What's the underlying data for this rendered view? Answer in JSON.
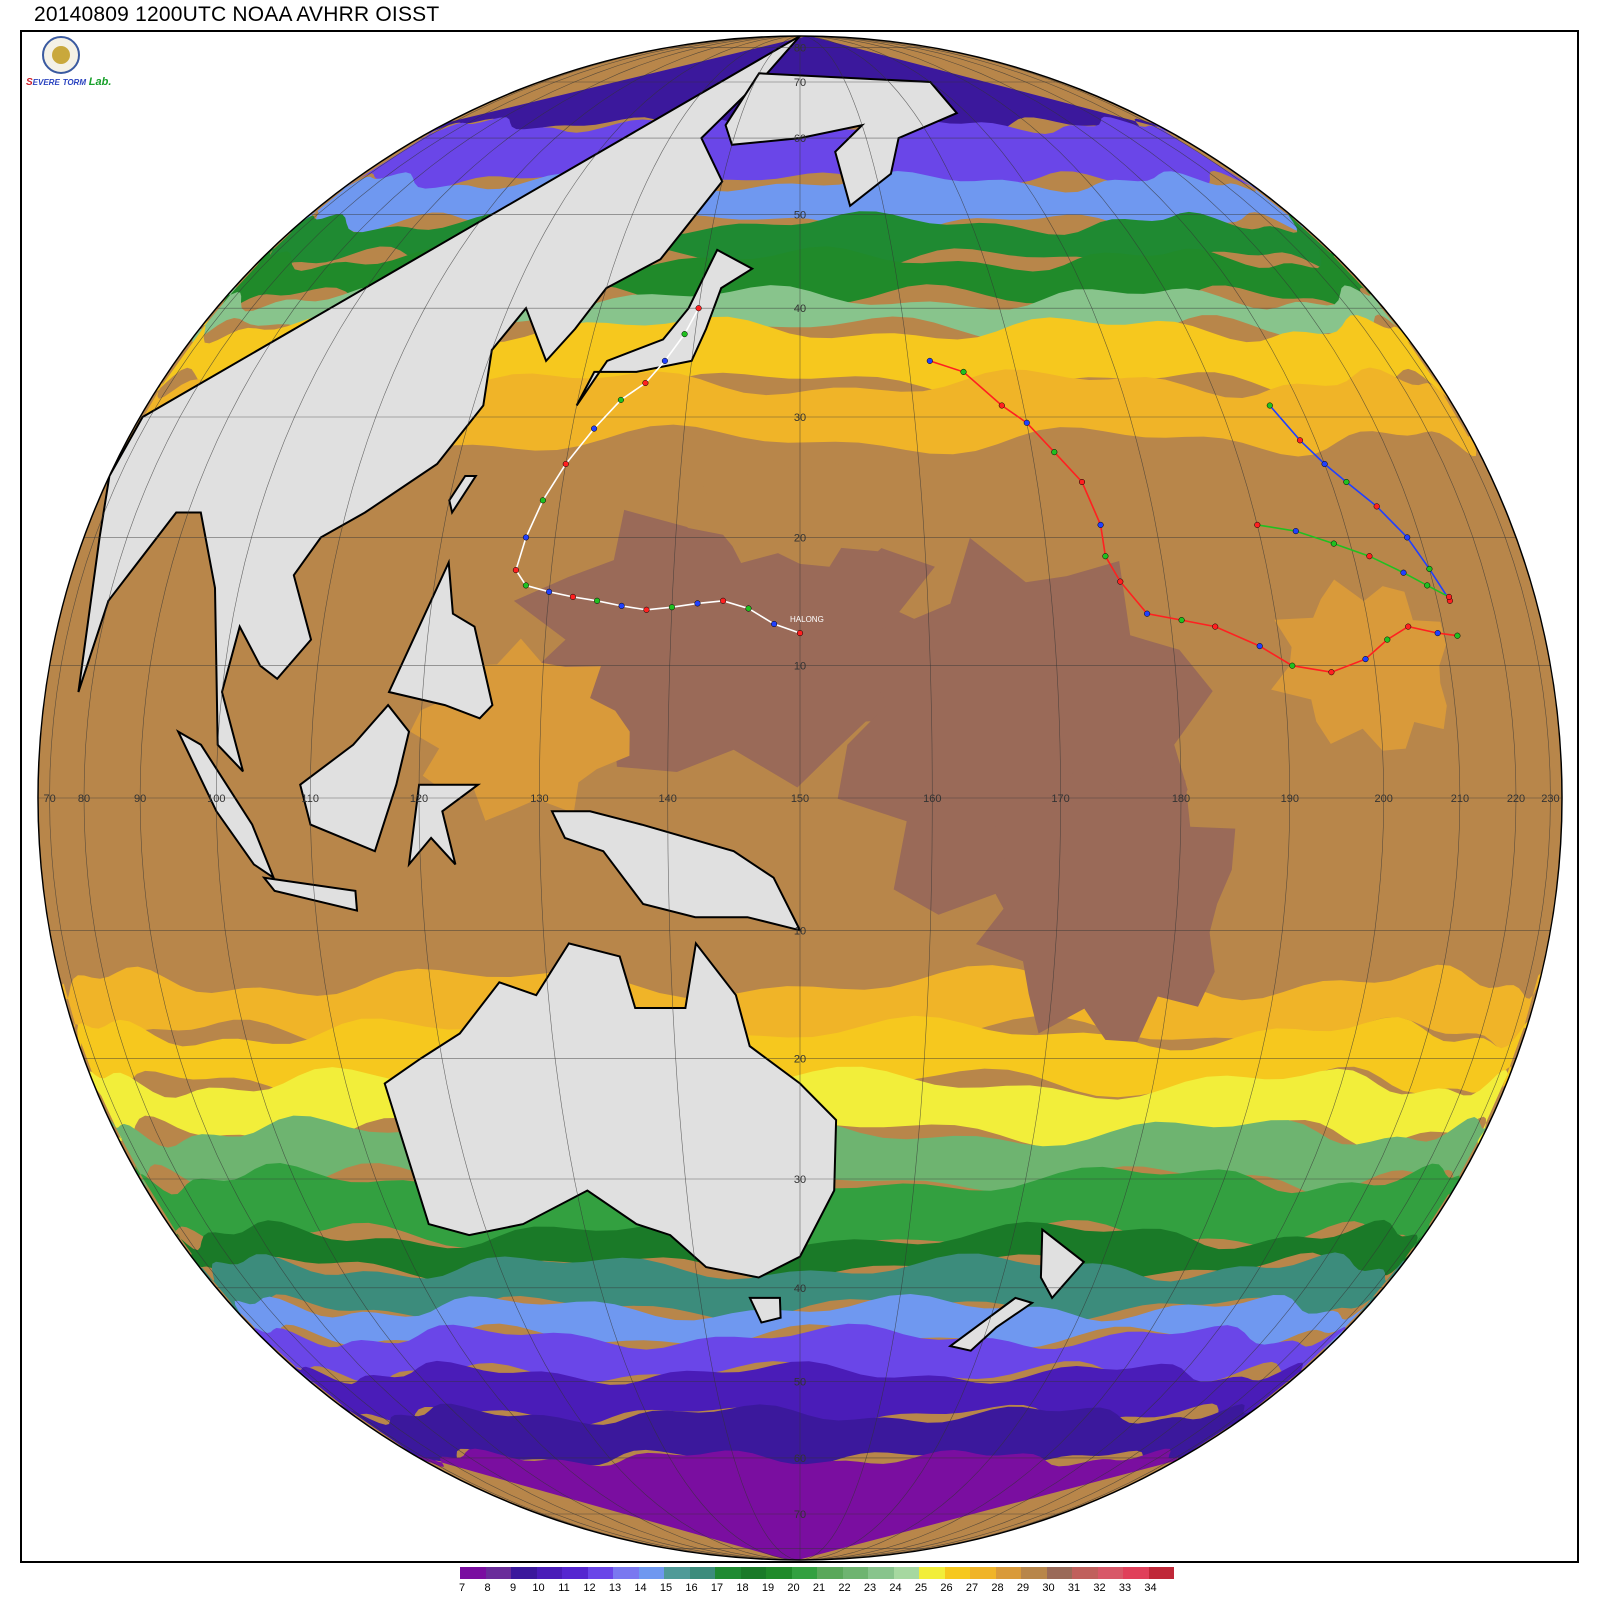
{
  "title": "20140809 1200UTC NOAA AVHRR OISST",
  "logo": {
    "s_text": "S",
    "evere_text": "EVERE",
    "storm_text": "TORM",
    "lab_text": "Lab."
  },
  "storm_label": "HALONG",
  "longitude_labels": [
    "70",
    "80",
    "90",
    "100",
    "110",
    "120",
    "130",
    "140",
    "150",
    "160",
    "170",
    "180",
    "190",
    "200",
    "210",
    "220",
    "230"
  ],
  "latitude_labels_north": [
    "10",
    "20",
    "30",
    "40",
    "50",
    "60",
    "70",
    "80"
  ],
  "latitude_labels_south": [
    "10",
    "20",
    "30",
    "40",
    "50",
    "60",
    "70"
  ],
  "colorbar": {
    "unit": "",
    "labels": [
      "7",
      "8",
      "9",
      "10",
      "11",
      "12",
      "13",
      "14",
      "15",
      "16",
      "17",
      "18",
      "19",
      "20",
      "21",
      "22",
      "23",
      "24",
      "25",
      "26",
      "27",
      "28",
      "29",
      "30",
      "31",
      "32",
      "33",
      "34"
    ],
    "colors": [
      "#7a0ea0",
      "#6a2c9a",
      "#3b189c",
      "#4a1cb8",
      "#5526d0",
      "#6a46e8",
      "#7a78f0",
      "#6f98f0",
      "#4f9a98",
      "#3c8c7c",
      "#1f8a32",
      "#1a7a28",
      "#208a2a",
      "#33a040",
      "#5aa85a",
      "#6eb470",
      "#88c48c",
      "#a6d8a0",
      "#f2ee3a",
      "#f6c81e",
      "#f0b428",
      "#d99a3a",
      "#b8864a",
      "#9a6a58",
      "#c0605c",
      "#d85868",
      "#e0405a",
      "#c02838"
    ]
  },
  "map": {
    "projection": "orthographic",
    "center_lon": 150,
    "center_lat": 0,
    "land_color": "#e0e0e0",
    "coast_color": "#000000"
  },
  "tracks": [
    {
      "name": "HALONG",
      "colors": [
        "#ff2020",
        "#2040ff",
        "#20c020",
        "#ffffff"
      ]
    }
  ]
}
